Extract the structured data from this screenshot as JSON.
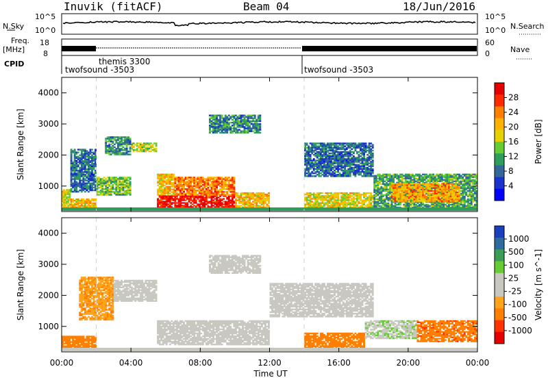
{
  "header": {
    "station": "Inuvik (fitACF)",
    "beam": "Beam 04",
    "date": "18/Jun/2016"
  },
  "strips": {
    "nsky_label": "N.Sky",
    "nsearch_label": "N.Search",
    "nsky_ticks": [
      "10^5",
      "10^0"
    ],
    "nsearch_ticks": [
      "10^5",
      "10^0"
    ],
    "freq_label_1": "Freq.",
    "freq_label_2": "[MHz]",
    "freq_ticks": [
      "18",
      "8"
    ],
    "nave_label": "Nave",
    "nave_ticks": [
      "60",
      "0"
    ],
    "cpid_label": "CPID"
  },
  "cpid_segments": [
    {
      "name": "twofsound -3503",
      "start_hour": 0,
      "end_hour": 2
    },
    {
      "name": "themis 3300",
      "start_hour": 2,
      "end_hour": 14
    },
    {
      "name": "twofsound -3503",
      "start_hour": 14,
      "end_hour": 24
    }
  ],
  "power_colorbar": {
    "title": "Power [dB]",
    "ticks": [
      "28",
      "24",
      "20",
      "16",
      "12",
      "8",
      "4"
    ],
    "colors": [
      "#e60000",
      "#ff2a00",
      "#ff7f00",
      "#ffb300",
      "#e6d200",
      "#66cc33",
      "#2e9e5c",
      "#336699",
      "#1a33cc",
      "#0000ff"
    ]
  },
  "velocity_colorbar": {
    "title": "Velocity [m s^-1]",
    "ticks": [
      "1000",
      "500",
      "100",
      "25",
      "-25",
      "-100",
      "-500",
      "-1000"
    ],
    "colors": [
      "#1a3fbf",
      "#2e6b9e",
      "#3a9e57",
      "#66cc33",
      "#c8c8c0",
      "#c8c8c0",
      "#ffa31a",
      "#ff7f00",
      "#ff3300",
      "#e60000"
    ]
  },
  "chart_data": [
    {
      "type": "heatmap",
      "name": "power",
      "ylabel": "Slant Range [km]",
      "xlabel": "",
      "xlim": [
        0,
        24
      ],
      "ylim": [
        180,
        4500
      ],
      "yticks": [
        1000,
        2000,
        3000,
        4000
      ],
      "data_units": "dB",
      "echo_regions": [
        {
          "t0": 0.0,
          "t1": 0.5,
          "r0": 300,
          "r1": 900,
          "value": 18
        },
        {
          "t0": 0.5,
          "t1": 2.0,
          "r0": 800,
          "r1": 2200,
          "value": 8
        },
        {
          "t0": 0.5,
          "t1": 2.0,
          "r0": 300,
          "r1": 600,
          "value": 20
        },
        {
          "t0": 2.0,
          "t1": 4.0,
          "r0": 700,
          "r1": 1300,
          "value": 14
        },
        {
          "t0": 2.5,
          "t1": 4.0,
          "r0": 2000,
          "r1": 2600,
          "value": 10
        },
        {
          "t0": 4.0,
          "t1": 5.5,
          "r0": 2100,
          "r1": 2400,
          "value": 16
        },
        {
          "t0": 5.5,
          "t1": 6.5,
          "r0": 700,
          "r1": 1400,
          "value": 20
        },
        {
          "t0": 5.5,
          "t1": 10.0,
          "r0": 220,
          "r1": 700,
          "value": 30
        },
        {
          "t0": 6.5,
          "t1": 10.0,
          "r0": 700,
          "r1": 1300,
          "value": 24
        },
        {
          "t0": 8.5,
          "t1": 11.5,
          "r0": 2700,
          "r1": 3300,
          "value": 10
        },
        {
          "t0": 10.0,
          "t1": 12.0,
          "r0": 250,
          "r1": 800,
          "value": 20
        },
        {
          "t0": 14.0,
          "t1": 18.0,
          "r0": 1300,
          "r1": 2400,
          "value": 8
        },
        {
          "t0": 14.0,
          "t1": 18.0,
          "r0": 250,
          "r1": 800,
          "value": 18
        },
        {
          "t0": 18.0,
          "t1": 24.0,
          "r0": 250,
          "r1": 1400,
          "value": 12
        },
        {
          "t0": 19.0,
          "t1": 23.0,
          "r0": 500,
          "r1": 1100,
          "value": 22
        }
      ]
    },
    {
      "type": "heatmap",
      "name": "velocity",
      "ylabel": "Slant Range [km]",
      "xlabel": "Time UT",
      "xlim": [
        0,
        24
      ],
      "ylim": [
        180,
        4500
      ],
      "yticks": [
        1000,
        2000,
        3000,
        4000
      ],
      "data_units": "m s^-1",
      "echo_regions": [
        {
          "t0": 0.0,
          "t1": 2.0,
          "r0": 300,
          "r1": 700,
          "value": -300
        },
        {
          "t0": 1.0,
          "t1": 3.0,
          "r0": 1200,
          "r1": 2600,
          "value": -80
        },
        {
          "t0": 3.0,
          "t1": 5.5,
          "r0": 1800,
          "r1": 2500,
          "value": 0
        },
        {
          "t0": 5.5,
          "t1": 12.0,
          "r0": 400,
          "r1": 1200,
          "value": 0
        },
        {
          "t0": 8.5,
          "t1": 11.5,
          "r0": 2700,
          "r1": 3300,
          "value": 0
        },
        {
          "t0": 12.0,
          "t1": 18.0,
          "r0": 1300,
          "r1": 2400,
          "value": 0
        },
        {
          "t0": 14.0,
          "t1": 17.5,
          "r0": 300,
          "r1": 800,
          "value": -200
        },
        {
          "t0": 17.5,
          "t1": 20.5,
          "r0": 600,
          "r1": 1200,
          "value": 80
        },
        {
          "t0": 20.5,
          "t1": 24.0,
          "r0": 500,
          "r1": 1200,
          "value": -400
        }
      ]
    }
  ],
  "time_axis": {
    "label": "Time UT",
    "ticks": [
      "00:00",
      "04:00",
      "08:00",
      "12:00",
      "16:00",
      "20:00",
      "00:00"
    ]
  }
}
